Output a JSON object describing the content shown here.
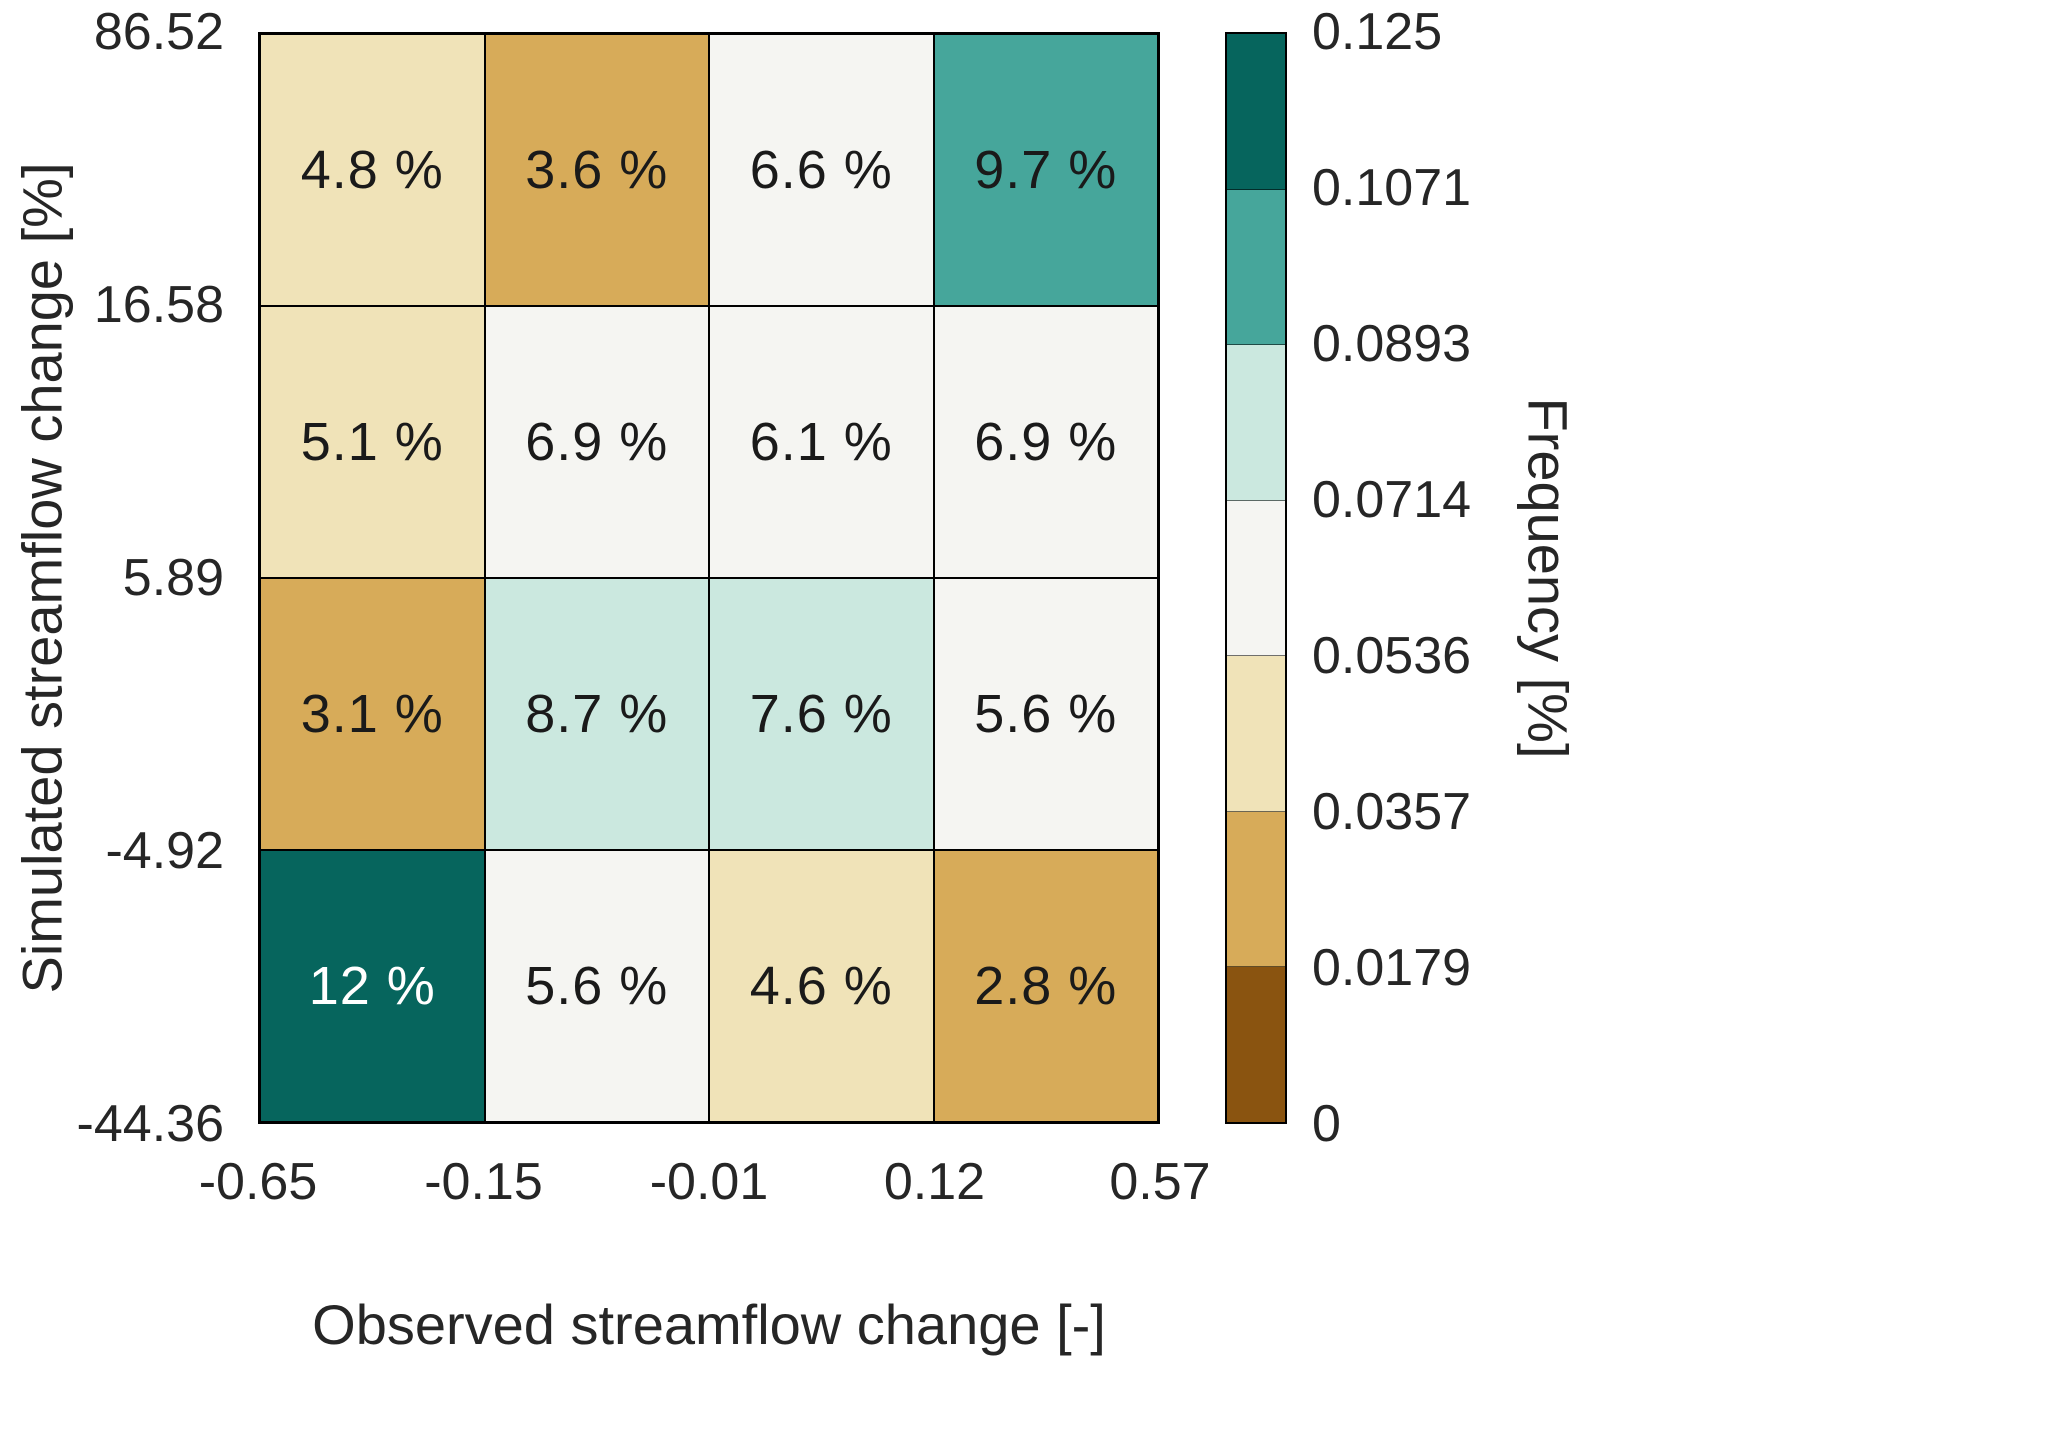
{
  "chart_data": {
    "type": "heatmap",
    "xlabel": "Observed streamflow change [-]",
    "ylabel": "Simulated streamflow change [%]",
    "x_tick_labels": [
      "-0.65",
      "-0.15",
      "-0.01",
      "0.12",
      "0.57"
    ],
    "y_tick_labels": [
      "86.52",
      "16.58",
      "5.89",
      "-4.92",
      "-44.36"
    ],
    "x_bin_edges": [
      -0.65,
      -0.15,
      -0.01,
      0.12,
      0.57
    ],
    "y_bin_edges": [
      -44.36,
      -4.92,
      5.89,
      16.58,
      86.52
    ],
    "grid": "on",
    "rows": [
      {
        "y_range": "16.58 to 86.52",
        "cells": [
          {
            "label": "4.8 %",
            "value": 0.048,
            "color": "#f0e3b8",
            "text": "#1a1a1a"
          },
          {
            "label": "3.6 %",
            "value": 0.036,
            "color": "#d7ab59",
            "text": "#1a1a1a"
          },
          {
            "label": "6.6 %",
            "value": 0.066,
            "color": "#f5f5f2",
            "text": "#1a1a1a"
          },
          {
            "label": "9.7 %",
            "value": 0.097,
            "color": "#46a69b",
            "text": "#1a1a1a"
          }
        ]
      },
      {
        "y_range": "5.89 to 16.58",
        "cells": [
          {
            "label": "5.1 %",
            "value": 0.051,
            "color": "#f0e3b8",
            "text": "#1a1a1a"
          },
          {
            "label": "6.9 %",
            "value": 0.069,
            "color": "#f5f5f2",
            "text": "#1a1a1a"
          },
          {
            "label": "6.1 %",
            "value": 0.061,
            "color": "#f5f5f2",
            "text": "#1a1a1a"
          },
          {
            "label": "6.9 %",
            "value": 0.069,
            "color": "#f5f5f2",
            "text": "#1a1a1a"
          }
        ]
      },
      {
        "y_range": "-4.92 to 5.89",
        "cells": [
          {
            "label": "3.1 %",
            "value": 0.031,
            "color": "#d7ab59",
            "text": "#1a1a1a"
          },
          {
            "label": "8.7 %",
            "value": 0.087,
            "color": "#cbe8df",
            "text": "#1a1a1a"
          },
          {
            "label": "7.6 %",
            "value": 0.076,
            "color": "#cbe8df",
            "text": "#1a1a1a"
          },
          {
            "label": "5.6 %",
            "value": 0.056,
            "color": "#f5f5f2",
            "text": "#1a1a1a"
          }
        ]
      },
      {
        "y_range": "-44.36 to -4.92",
        "cells": [
          {
            "label": "12 %",
            "value": 0.12,
            "color": "#06655d",
            "text": "#ffffff"
          },
          {
            "label": "5.6 %",
            "value": 0.056,
            "color": "#f5f5f2",
            "text": "#1a1a1a"
          },
          {
            "label": "4.6 %",
            "value": 0.046,
            "color": "#f0e3b8",
            "text": "#1a1a1a"
          },
          {
            "label": "2.8 %",
            "value": 0.028,
            "color": "#d7ab59",
            "text": "#1a1a1a"
          }
        ]
      }
    ],
    "colorbar": {
      "title": "Frequency [%]",
      "tick_labels": [
        "0.125",
        "0.1071",
        "0.0893",
        "0.0714",
        "0.0536",
        "0.0357",
        "0.0179",
        "0"
      ],
      "range": [
        0,
        0.125
      ],
      "segment_colors_top_to_bottom": [
        "#06655d",
        "#46a69b",
        "#cbe8df",
        "#f5f5f2",
        "#f0e3b8",
        "#d7ab59",
        "#8a5410"
      ]
    }
  }
}
